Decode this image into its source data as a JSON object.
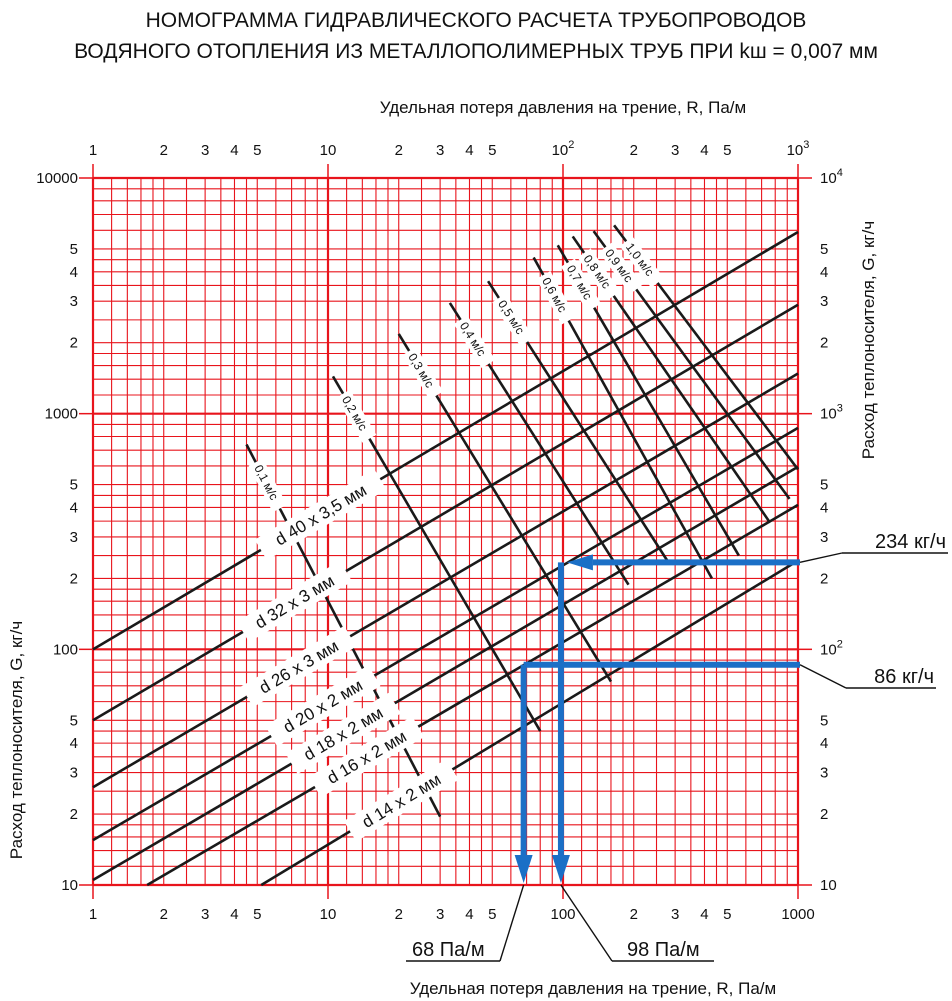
{
  "chart_data": {
    "type": "line",
    "title_line1": "НОМОГРАММА ГИДРАВЛИЧЕСКОГО РАСЧЕТА ТРУБОПРОВОДОВ",
    "title_line2": "ВОДЯНОГО ОТОПЛЕНИЯ ИЗ МЕТАЛЛОПОЛИМЕРНЫХ ТРУБ ПРИ kш = 0,007 мм",
    "xlabel_top": "Удельная потеря давления на трение, R, Па/м",
    "xlabel_bottom": "Удельная потеря давления на трение, R, Па/м",
    "ylabel_left": "Расход теплоносителя, G, кг/ч",
    "ylabel_right": "Расход теплоносителя, G, кг/ч",
    "x_scale": "log",
    "y_scale": "log",
    "xlim": [
      1,
      1000
    ],
    "ylim": [
      10,
      10000
    ],
    "grid": true,
    "grid_color": "#e8141c",
    "line_color": "#1a1a1a",
    "highlight_color": "#1b6fc6",
    "x_ticks_top": [
      {
        "v": 1,
        "t": "1"
      },
      {
        "v": 2,
        "t": "2"
      },
      {
        "v": 3,
        "t": "3"
      },
      {
        "v": 4,
        "t": "4"
      },
      {
        "v": 5,
        "t": "5"
      },
      {
        "v": 10,
        "t": "10"
      },
      {
        "v": 20,
        "t": "2"
      },
      {
        "v": 30,
        "t": "3"
      },
      {
        "v": 40,
        "t": "4"
      },
      {
        "v": 50,
        "t": "5"
      },
      {
        "v": 100,
        "t": "10",
        "sup": "2"
      },
      {
        "v": 200,
        "t": "2"
      },
      {
        "v": 300,
        "t": "3"
      },
      {
        "v": 400,
        "t": "4"
      },
      {
        "v": 500,
        "t": "5"
      },
      {
        "v": 1000,
        "t": "10",
        "sup": "3"
      }
    ],
    "x_ticks_bottom": [
      {
        "v": 1,
        "t": "1"
      },
      {
        "v": 2,
        "t": "2"
      },
      {
        "v": 3,
        "t": "3"
      },
      {
        "v": 4,
        "t": "4"
      },
      {
        "v": 5,
        "t": "5"
      },
      {
        "v": 10,
        "t": "10"
      },
      {
        "v": 20,
        "t": "2"
      },
      {
        "v": 30,
        "t": "3"
      },
      {
        "v": 40,
        "t": "4"
      },
      {
        "v": 50,
        "t": "5"
      },
      {
        "v": 100,
        "t": "100"
      },
      {
        "v": 200,
        "t": "2"
      },
      {
        "v": 300,
        "t": "3"
      },
      {
        "v": 400,
        "t": "4"
      },
      {
        "v": 500,
        "t": "5"
      },
      {
        "v": 1000,
        "t": "1000"
      }
    ],
    "y_ticks_left": [
      {
        "v": 10000,
        "t": "10000"
      },
      {
        "v": 5000,
        "t": "5"
      },
      {
        "v": 4000,
        "t": "4"
      },
      {
        "v": 3000,
        "t": "3"
      },
      {
        "v": 2000,
        "t": "2"
      },
      {
        "v": 1000,
        "t": "1000"
      },
      {
        "v": 500,
        "t": "5"
      },
      {
        "v": 400,
        "t": "4"
      },
      {
        "v": 300,
        "t": "3"
      },
      {
        "v": 200,
        "t": "2"
      },
      {
        "v": 100,
        "t": "100"
      },
      {
        "v": 50,
        "t": "5"
      },
      {
        "v": 40,
        "t": "4"
      },
      {
        "v": 30,
        "t": "3"
      },
      {
        "v": 20,
        "t": "2"
      },
      {
        "v": 10,
        "t": "10"
      }
    ],
    "y_ticks_right": [
      {
        "v": 10000,
        "t": "10",
        "sup": "4"
      },
      {
        "v": 5000,
        "t": "5"
      },
      {
        "v": 4000,
        "t": "4"
      },
      {
        "v": 3000,
        "t": "3"
      },
      {
        "v": 2000,
        "t": "2"
      },
      {
        "v": 1000,
        "t": "10",
        "sup": "3"
      },
      {
        "v": 500,
        "t": "5"
      },
      {
        "v": 400,
        "t": "4"
      },
      {
        "v": 300,
        "t": "3"
      },
      {
        "v": 200,
        "t": "2"
      },
      {
        "v": 100,
        "t": "10",
        "sup": "2"
      },
      {
        "v": 50,
        "t": "5"
      },
      {
        "v": 40,
        "t": "4"
      },
      {
        "v": 30,
        "t": "3"
      },
      {
        "v": 20,
        "t": "2"
      },
      {
        "v": 10,
        "t": "10"
      }
    ],
    "pipe_lines": [
      {
        "name": "d 40 x 3,5 мм",
        "x": [
          1,
          1000
        ],
        "y": [
          100,
          5900
        ]
      },
      {
        "name": "d 32 x 3 мм",
        "x": [
          1,
          1000
        ],
        "y": [
          50,
          2900
        ]
      },
      {
        "name": "d 26 x 3 мм",
        "x": [
          1,
          1000
        ],
        "y": [
          26,
          1480
        ]
      },
      {
        "name": "d 20 x 2 мм",
        "x": [
          1,
          1000
        ],
        "y": [
          15.5,
          870
        ]
      },
      {
        "name": "d 18 x 2 мм",
        "x": [
          1,
          1000
        ],
        "y": [
          10.5,
          595
        ]
      },
      {
        "name": "d 16 x 2 мм",
        "x": [
          1.7,
          1000
        ],
        "y": [
          10,
          410
        ]
      },
      {
        "name": "d 14 x 2 мм",
        "x": [
          5.2,
          1000
        ],
        "y": [
          10,
          238
        ]
      }
    ],
    "velocity_lines": [
      {
        "name": "0,1 м/с",
        "x": [
          4.5,
          30
        ],
        "y": [
          740,
          19.5
        ]
      },
      {
        "name": "0,2 м/с",
        "x": [
          10.5,
          80
        ],
        "y": [
          1440,
          45
        ]
      },
      {
        "name": "0,3 м/с",
        "x": [
          20,
          160
        ],
        "y": [
          2180,
          73
        ]
      },
      {
        "name": "0,4 м/с",
        "x": [
          33,
          190
        ],
        "y": [
          2950,
          188
        ]
      },
      {
        "name": "0,5 м/с",
        "x": [
          48,
          280
        ],
        "y": [
          3650,
          235
        ]
      },
      {
        "name": "0,6 м/с",
        "x": [
          75,
          430
        ],
        "y": [
          4600,
          200
        ]
      },
      {
        "name": "0,7 м/с",
        "x": [
          95,
          560
        ],
        "y": [
          5180,
          250
        ]
      },
      {
        "name": "0,8 м/с",
        "x": [
          110,
          760
        ],
        "y": [
          5650,
          345
        ]
      },
      {
        "name": "0,9 м/с",
        "x": [
          135,
          920
        ],
        "y": [
          5950,
          435
        ]
      },
      {
        "name": "1,0 м/с",
        "x": [
          165,
          1000
        ],
        "y": [
          6300,
          580
        ]
      }
    ],
    "annotations": [
      {
        "label": "234 кг/ч",
        "G": 234,
        "R": 98
      },
      {
        "label": "86 кг/ч",
        "G": 86,
        "R": 68
      },
      {
        "label": "68 Па/м",
        "R": 68
      },
      {
        "label": "98 Па/м",
        "R": 98
      }
    ]
  }
}
